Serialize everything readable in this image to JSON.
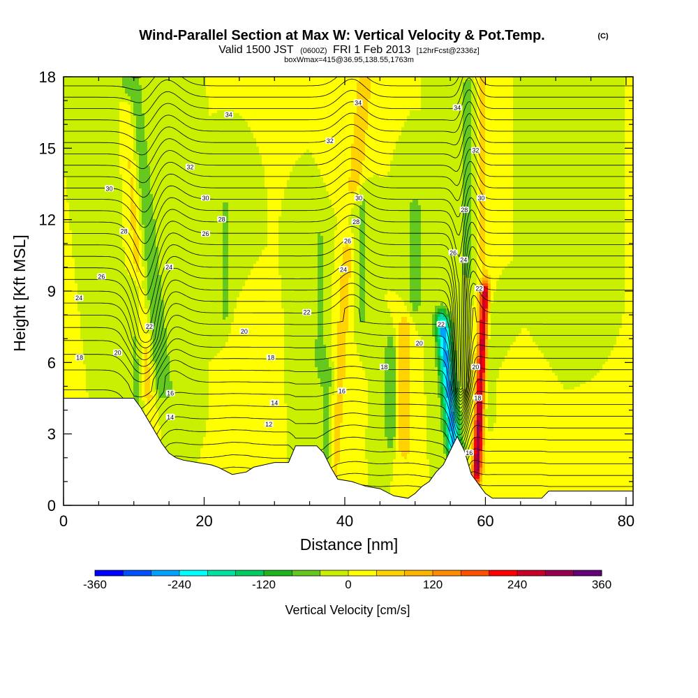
{
  "header": {
    "title": "Wind-Parallel Section at Max W: Vertical Velocity & Pot.Temp.",
    "copyright": "(C)",
    "valid_prefix": "Valid 1500 JST",
    "valid_utc": "(0600Z)",
    "valid_date": "FRI 1 Feb 2013",
    "forecast": "[12hrFcst@2336z]",
    "boxinfo": "boxWmax=415@36.95,138.55,1763m"
  },
  "chart_data": {
    "type": "heatmap",
    "xlabel": "Distance [nm]",
    "ylabel": "Height [Kft MSL]",
    "xlim": [
      0,
      81
    ],
    "ylim": [
      0,
      18
    ],
    "x_ticks": [
      "0",
      "20",
      "40",
      "60",
      "80"
    ],
    "y_ticks": [
      "0",
      "3",
      "6",
      "9",
      "12",
      "15",
      "18"
    ],
    "colorbar": {
      "label": "Vertical Velocity [cm/s]",
      "range": [
        -360,
        360
      ],
      "tick_labels": [
        "-360",
        "-240",
        "-120",
        "0",
        "120",
        "240",
        "360"
      ],
      "colors": [
        "#0000ff",
        "#0050ff",
        "#00a0ff",
        "#00ffff",
        "#00e0a0",
        "#00cc60",
        "#1eb41e",
        "#64c81e",
        "#c8f000",
        "#ffff00",
        "#ffd200",
        "#ffb400",
        "#ff8c00",
        "#ff5000",
        "#ff0000",
        "#c80028",
        "#960050",
        "#640078"
      ]
    },
    "terrain_profile": [
      [
        0,
        4.5
      ],
      [
        10,
        4.5
      ],
      [
        11,
        4.1
      ],
      [
        12,
        3.6
      ],
      [
        13,
        3.1
      ],
      [
        14,
        2.6
      ],
      [
        15,
        2.2
      ],
      [
        16,
        2
      ],
      [
        17,
        1.9
      ],
      [
        19,
        1.8
      ],
      [
        21,
        1.7
      ],
      [
        22,
        1.6
      ],
      [
        24,
        1.3
      ],
      [
        26,
        1.4
      ],
      [
        27,
        1.6
      ],
      [
        30,
        1.8
      ],
      [
        32,
        1.8
      ],
      [
        33,
        2.5
      ],
      [
        36,
        2.5
      ],
      [
        37,
        2.2
      ],
      [
        38,
        1.6
      ],
      [
        39,
        1.1
      ],
      [
        41,
        1
      ],
      [
        43,
        0.8
      ],
      [
        45,
        0.7
      ],
      [
        47,
        0.4
      ],
      [
        49,
        0.3
      ],
      [
        50,
        0.5
      ],
      [
        51,
        0.8
      ],
      [
        52,
        1
      ],
      [
        53,
        1.4
      ],
      [
        54,
        1.7
      ],
      [
        55,
        2.3
      ],
      [
        56,
        2.9
      ],
      [
        57,
        2.3
      ],
      [
        58,
        1.3
      ],
      [
        60,
        0.5
      ],
      [
        61,
        0.3
      ],
      [
        65,
        0.3
      ],
      [
        68,
        0.3
      ],
      [
        69,
        0.6
      ],
      [
        81,
        0.6
      ]
    ],
    "w_features": [
      {
        "x": 12.0,
        "ybot": 4.8,
        "ytop": 16.5,
        "slope": -0.25,
        "half_width": 1.0,
        "value": 85
      },
      {
        "x": 14.0,
        "ybot": 5.0,
        "ytop": 18.0,
        "slope": -0.35,
        "half_width": 1.8,
        "value": -70
      },
      {
        "x": 10.5,
        "ybot": 4.5,
        "ytop": 9.0,
        "slope": 0.0,
        "half_width": 1.0,
        "value": -60
      },
      {
        "x": 23.0,
        "ybot": 8.0,
        "ytop": 12.5,
        "slope": 0.0,
        "half_width": 1.0,
        "value": -45
      },
      {
        "x": 25.0,
        "ybot": 2.5,
        "ytop": 7.5,
        "slope": 0.0,
        "half_width": 1.2,
        "value": 30
      },
      {
        "x": 36.5,
        "ybot": 6.0,
        "ytop": 11.0,
        "slope": 0.0,
        "half_width": 1.0,
        "value": -55
      },
      {
        "x": 38.5,
        "ybot": 1.5,
        "ytop": 10.5,
        "slope": 0.2,
        "half_width": 1.0,
        "value": 60
      },
      {
        "x": 37.5,
        "ybot": 2.0,
        "ytop": 5.5,
        "slope": 0.0,
        "half_width": 1.0,
        "value": -60
      },
      {
        "x": 41.5,
        "ybot": 13.5,
        "ytop": 18.0,
        "slope": 0.3,
        "half_width": 1.2,
        "value": 70
      },
      {
        "x": 42.5,
        "ybot": 8.0,
        "ytop": 13.0,
        "slope": 0.0,
        "half_width": 1.0,
        "value": -50
      },
      {
        "x": 46.5,
        "ybot": 3.0,
        "ytop": 6.5,
        "slope": 0.0,
        "half_width": 0.8,
        "value": -80
      },
      {
        "x": 48.5,
        "ybot": 2.5,
        "ytop": 7.5,
        "slope": 0.0,
        "half_width": 1.0,
        "value": 70
      },
      {
        "x": 50.0,
        "ybot": 8.5,
        "ytop": 12.5,
        "slope": 0.0,
        "half_width": 1.2,
        "value": -55
      },
      {
        "x": 55.5,
        "ybot": 2.5,
        "ytop": 7.5,
        "slope": -0.3,
        "half_width": 1.1,
        "value": -260
      },
      {
        "x": 58.8,
        "ybot": 1.5,
        "ytop": 8.8,
        "slope": 0.15,
        "half_width": 0.7,
        "value": 300
      },
      {
        "x": 57.5,
        "ybot": 10.0,
        "ytop": 17.5,
        "slope": 0.0,
        "half_width": 1.1,
        "value": -60
      },
      {
        "x": 59.5,
        "ybot": 10.5,
        "ytop": 18.0,
        "slope": 0.0,
        "half_width": 1.0,
        "value": 50
      },
      {
        "x": 60.5,
        "ybot": 4.0,
        "ytop": 8.0,
        "slope": 0.0,
        "half_width": 1.2,
        "value": -50
      },
      {
        "x": 62.5,
        "ybot": 1.0,
        "ytop": 5.0,
        "slope": 0.0,
        "half_width": 1.5,
        "value": 30
      },
      {
        "x": 71.0,
        "ybot": 9.0,
        "ytop": 18.0,
        "slope": 0.0,
        "half_width": 1.5,
        "value": -40
      }
    ],
    "contour_labels": [
      {
        "text": "18",
        "x": 2.3,
        "y": 6.2
      },
      {
        "text": "20",
        "x": 7.7,
        "y": 6.4
      },
      {
        "text": "22",
        "x": 12.2,
        "y": 7.5
      },
      {
        "text": "16",
        "x": 15.2,
        "y": 4.7
      },
      {
        "text": "14",
        "x": 15.2,
        "y": 3.7
      },
      {
        "text": "24",
        "x": 2.2,
        "y": 8.7
      },
      {
        "text": "26",
        "x": 5.4,
        "y": 9.6
      },
      {
        "text": "28",
        "x": 8.6,
        "y": 11.5
      },
      {
        "text": "30",
        "x": 6.5,
        "y": 13.3
      },
      {
        "text": "24",
        "x": 15.0,
        "y": 10.0
      },
      {
        "text": "26",
        "x": 20.2,
        "y": 11.4
      },
      {
        "text": "28",
        "x": 22.5,
        "y": 12.0
      },
      {
        "text": "30",
        "x": 20.2,
        "y": 12.9
      },
      {
        "text": "32",
        "x": 18.0,
        "y": 14.2
      },
      {
        "text": "34",
        "x": 23.5,
        "y": 16.4
      },
      {
        "text": "20",
        "x": 25.7,
        "y": 7.3
      },
      {
        "text": "18",
        "x": 29.5,
        "y": 6.2
      },
      {
        "text": "14",
        "x": 30.0,
        "y": 4.3
      },
      {
        "text": "12",
        "x": 29.2,
        "y": 3.4
      },
      {
        "text": "22",
        "x": 34.6,
        "y": 8.1
      },
      {
        "text": "16",
        "x": 39.6,
        "y": 4.8
      },
      {
        "text": "18",
        "x": 45.6,
        "y": 5.8
      },
      {
        "text": "24",
        "x": 39.8,
        "y": 9.9
      },
      {
        "text": "26",
        "x": 40.4,
        "y": 11.1
      },
      {
        "text": "28",
        "x": 41.6,
        "y": 11.9
      },
      {
        "text": "30",
        "x": 42.0,
        "y": 12.9
      },
      {
        "text": "32",
        "x": 37.9,
        "y": 15.3
      },
      {
        "text": "34",
        "x": 41.9,
        "y": 16.9
      },
      {
        "text": "20",
        "x": 50.6,
        "y": 6.8
      },
      {
        "text": "22",
        "x": 53.7,
        "y": 7.6
      },
      {
        "text": "26",
        "x": 55.4,
        "y": 10.6
      },
      {
        "text": "24",
        "x": 56.9,
        "y": 10.3
      },
      {
        "text": "28",
        "x": 57.0,
        "y": 12.4
      },
      {
        "text": "22",
        "x": 59.1,
        "y": 9.1
      },
      {
        "text": "20",
        "x": 58.6,
        "y": 5.8
      },
      {
        "text": "18",
        "x": 58.9,
        "y": 4.5
      },
      {
        "text": "16",
        "x": 57.7,
        "y": 2.2
      },
      {
        "text": "30",
        "x": 59.4,
        "y": 12.9
      },
      {
        "text": "32",
        "x": 58.6,
        "y": 14.9
      },
      {
        "text": "34",
        "x": 56.0,
        "y": 16.7
      }
    ]
  }
}
